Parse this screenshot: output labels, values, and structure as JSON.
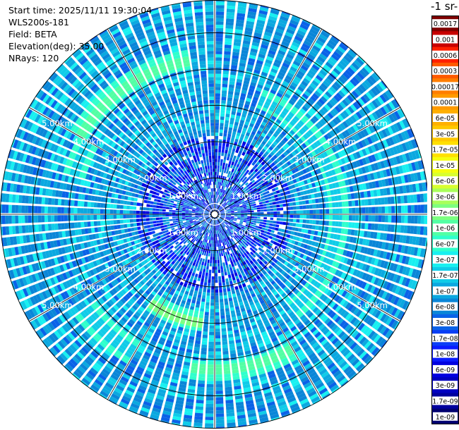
{
  "header": {
    "start_time": "Start time: 2025/11/11 19:30:04",
    "instrument": "WLS200s-181",
    "field": "Field: BETA",
    "elevation": "Elevation(deg): 35.00",
    "nrays": "NRays: 120"
  },
  "colorbar": {
    "title": "-1 sr-",
    "labels": [
      "0.0017",
      "0.001",
      "0.0006",
      "0.0003",
      "0.00017",
      "0.0001",
      "6e-05",
      "3e-05",
      "1.7e-05",
      "1e-05",
      "6e-06",
      "3e-06",
      "1.7e-06",
      "1e-06",
      "6e-07",
      "3e-07",
      "1.7e-07",
      "1e-07",
      "6e-08",
      "3e-08",
      "1.7e-08",
      "1e-08",
      "6e-09",
      "3e-09",
      "1.7e-09",
      "1e-09"
    ],
    "colors": [
      "#7f0000",
      "#c80000",
      "#ff2000",
      "#ff5a00",
      "#ff7e00",
      "#ff9a00",
      "#ffb000",
      "#ffc800",
      "#ffe000",
      "#f5ff10",
      "#d8ff30",
      "#a8ff5a",
      "#7cff80",
      "#52ffa4",
      "#30ffcc",
      "#18f0f0",
      "#10cce8",
      "#0ba8e0",
      "#0a86d8",
      "#0a62e8",
      "#0a3ef5",
      "#0a1cff",
      "#0000e0",
      "#0000c0",
      "#00009e",
      "#000070"
    ]
  },
  "chart_data": {
    "type": "ppi",
    "field": "BETA",
    "elevation_deg": 35.0,
    "nrays": 120,
    "range_unit": "km",
    "max_range_km": 5.9,
    "range_ring_labels": [
      "1.00km",
      "2.00km",
      "3.00km",
      "4.00km",
      "5.00km"
    ],
    "range_rings_km": [
      1,
      2,
      3,
      4,
      5
    ],
    "azimuth_spokes_deg": [
      0,
      30,
      60,
      90,
      120,
      150,
      180,
      210,
      240,
      270,
      300,
      330
    ],
    "features": [
      {
        "description": "arc",
        "range_km": 4.3,
        "azimuth_deg": [
          300,
          350
        ],
        "value": "1e-06"
      },
      {
        "description": "arc",
        "range_km": 3.4,
        "azimuth_deg": [
          20,
          140
        ],
        "value": "1.7e-07"
      },
      {
        "description": "arc",
        "range_km": 3.0,
        "azimuth_deg": [
          185,
          215
        ],
        "value": "1.7e-06"
      },
      {
        "description": "arc",
        "range_km": 4.3,
        "azimuth_deg": [
          150,
          190
        ],
        "value": "1e-06"
      },
      {
        "description": "patch",
        "range_km": 4.4,
        "azimuth_deg": [
          210,
          235
        ],
        "value": "1.7e-07"
      },
      {
        "description": "patch",
        "range_km": 4.0,
        "azimuth_deg": [
          285,
          300
        ],
        "value": "1.7e-07"
      }
    ]
  }
}
